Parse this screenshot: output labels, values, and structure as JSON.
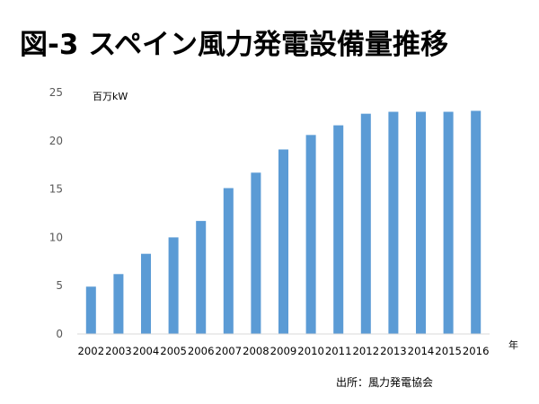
{
  "chart_data": {
    "type": "bar",
    "title": "図-3 スペイン風力発電設備量推移",
    "ylabel": "百万kW",
    "xlabel": "年",
    "source": "出所：風力発電協会",
    "categories": [
      "2002",
      "2003",
      "2004",
      "2005",
      "2006",
      "2007",
      "2008",
      "2009",
      "2010",
      "2011",
      "2012",
      "2013",
      "2014",
      "2015",
      "2016"
    ],
    "values": [
      4.9,
      6.2,
      8.3,
      10.0,
      11.7,
      15.1,
      16.7,
      19.1,
      20.6,
      21.6,
      22.8,
      23.0,
      23.0,
      23.0,
      23.1
    ],
    "ylim": [
      0,
      25
    ],
    "yticks": [
      "0",
      "5",
      "10",
      "15",
      "20",
      "25"
    ],
    "grid": false,
    "bar_color": "#5B9BD5",
    "axis_color": "#D9D9D9"
  }
}
